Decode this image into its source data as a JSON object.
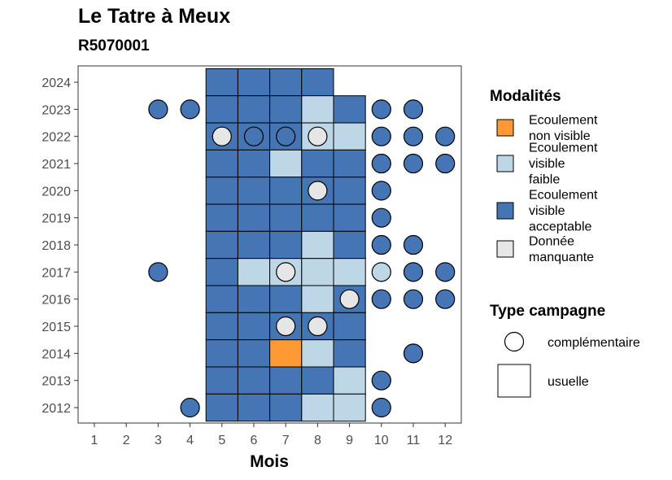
{
  "chart_data": {
    "type": "heatmap",
    "title": "Le Tatre à Meux",
    "subtitle": "R5070001",
    "xlabel": "Mois",
    "ylabel": "",
    "x_ticks": [
      1,
      2,
      3,
      4,
      5,
      6,
      7,
      8,
      9,
      10,
      11,
      12
    ],
    "y_ticks": [
      2012,
      2013,
      2014,
      2015,
      2016,
      2017,
      2018,
      2019,
      2020,
      2021,
      2022,
      2023,
      2024
    ],
    "legend_modalites": {
      "title": "Modalités",
      "items": [
        {
          "key": "nv",
          "label": "Ecoulement non visible",
          "color": "#FF9933"
        },
        {
          "key": "vf",
          "label": "Ecoulement visible faible",
          "color": "#BDD7E7"
        },
        {
          "key": "va",
          "label": "Ecoulement visible acceptable",
          "color": "#4575B4"
        },
        {
          "key": "dm",
          "label": "Donnée manquante",
          "color": "#E6E6E6"
        }
      ]
    },
    "legend_campagne": {
      "title": "Type campagne",
      "items": [
        {
          "shape": "circle",
          "label": "complémentaire"
        },
        {
          "shape": "square",
          "label": "usuelle"
        }
      ]
    },
    "points": [
      {
        "year": 2024,
        "month": 5,
        "mod": "va",
        "type": "usuelle"
      },
      {
        "year": 2024,
        "month": 6,
        "mod": "va",
        "type": "usuelle"
      },
      {
        "year": 2024,
        "month": 7,
        "mod": "va",
        "type": "usuelle"
      },
      {
        "year": 2024,
        "month": 8,
        "mod": "va",
        "type": "usuelle"
      },
      {
        "year": 2023,
        "month": 3,
        "mod": "va",
        "type": "complementaire"
      },
      {
        "year": 2023,
        "month": 4,
        "mod": "va",
        "type": "complementaire"
      },
      {
        "year": 2023,
        "month": 5,
        "mod": "va",
        "type": "usuelle"
      },
      {
        "year": 2023,
        "month": 6,
        "mod": "va",
        "type": "usuelle"
      },
      {
        "year": 2023,
        "month": 7,
        "mod": "va",
        "type": "usuelle"
      },
      {
        "year": 2023,
        "month": 8,
        "mod": "vf",
        "type": "usuelle"
      },
      {
        "year": 2023,
        "month": 9,
        "mod": "va",
        "type": "usuelle"
      },
      {
        "year": 2023,
        "month": 10,
        "mod": "va",
        "type": "complementaire"
      },
      {
        "year": 2023,
        "month": 11,
        "mod": "va",
        "type": "complementaire"
      },
      {
        "year": 2022,
        "month": 5,
        "mod": "va",
        "type": "usuelle"
      },
      {
        "year": 2022,
        "month": 6,
        "mod": "va",
        "type": "usuelle"
      },
      {
        "year": 2022,
        "month": 7,
        "mod": "va",
        "type": "usuelle"
      },
      {
        "year": 2022,
        "month": 8,
        "mod": "vf",
        "type": "usuelle"
      },
      {
        "year": 2022,
        "month": 9,
        "mod": "vf",
        "type": "usuelle"
      },
      {
        "year": 2022,
        "month": 5,
        "mod": "dm",
        "type": "complementaire"
      },
      {
        "year": 2022,
        "month": 6,
        "mod": "va",
        "type": "complementaire"
      },
      {
        "year": 2022,
        "month": 7,
        "mod": "va",
        "type": "complementaire"
      },
      {
        "year": 2022,
        "month": 8,
        "mod": "dm",
        "type": "complementaire"
      },
      {
        "year": 2022,
        "month": 10,
        "mod": "va",
        "type": "complementaire"
      },
      {
        "year": 2022,
        "month": 11,
        "mod": "va",
        "type": "complementaire"
      },
      {
        "year": 2022,
        "month": 12,
        "mod": "va",
        "type": "complementaire"
      },
      {
        "year": 2021,
        "month": 5,
        "mod": "va",
        "type": "usuelle"
      },
      {
        "year": 2021,
        "month": 6,
        "mod": "va",
        "type": "usuelle"
      },
      {
        "year": 2021,
        "month": 7,
        "mod": "vf",
        "type": "usuelle"
      },
      {
        "year": 2021,
        "month": 8,
        "mod": "va",
        "type": "usuelle"
      },
      {
        "year": 2021,
        "month": 9,
        "mod": "va",
        "type": "usuelle"
      },
      {
        "year": 2021,
        "month": 10,
        "mod": "va",
        "type": "complementaire"
      },
      {
        "year": 2021,
        "month": 11,
        "mod": "va",
        "type": "complementaire"
      },
      {
        "year": 2021,
        "month": 12,
        "mod": "va",
        "type": "complementaire"
      },
      {
        "year": 2020,
        "month": 5,
        "mod": "va",
        "type": "usuelle"
      },
      {
        "year": 2020,
        "month": 6,
        "mod": "va",
        "type": "usuelle"
      },
      {
        "year": 2020,
        "month": 7,
        "mod": "va",
        "type": "usuelle"
      },
      {
        "year": 2020,
        "month": 8,
        "mod": "va",
        "type": "usuelle"
      },
      {
        "year": 2020,
        "month": 9,
        "mod": "va",
        "type": "usuelle"
      },
      {
        "year": 2020,
        "month": 8,
        "mod": "dm",
        "type": "complementaire"
      },
      {
        "year": 2020,
        "month": 10,
        "mod": "va",
        "type": "complementaire"
      },
      {
        "year": 2019,
        "month": 5,
        "mod": "va",
        "type": "usuelle"
      },
      {
        "year": 2019,
        "month": 6,
        "mod": "va",
        "type": "usuelle"
      },
      {
        "year": 2019,
        "month": 7,
        "mod": "va",
        "type": "usuelle"
      },
      {
        "year": 2019,
        "month": 8,
        "mod": "va",
        "type": "usuelle"
      },
      {
        "year": 2019,
        "month": 9,
        "mod": "va",
        "type": "usuelle"
      },
      {
        "year": 2019,
        "month": 10,
        "mod": "va",
        "type": "complementaire"
      },
      {
        "year": 2018,
        "month": 5,
        "mod": "va",
        "type": "usuelle"
      },
      {
        "year": 2018,
        "month": 6,
        "mod": "va",
        "type": "usuelle"
      },
      {
        "year": 2018,
        "month": 7,
        "mod": "va",
        "type": "usuelle"
      },
      {
        "year": 2018,
        "month": 8,
        "mod": "vf",
        "type": "usuelle"
      },
      {
        "year": 2018,
        "month": 9,
        "mod": "va",
        "type": "usuelle"
      },
      {
        "year": 2018,
        "month": 10,
        "mod": "va",
        "type": "complementaire"
      },
      {
        "year": 2018,
        "month": 11,
        "mod": "va",
        "type": "complementaire"
      },
      {
        "year": 2017,
        "month": 3,
        "mod": "va",
        "type": "complementaire"
      },
      {
        "year": 2017,
        "month": 5,
        "mod": "va",
        "type": "usuelle"
      },
      {
        "year": 2017,
        "month": 6,
        "mod": "vf",
        "type": "usuelle"
      },
      {
        "year": 2017,
        "month": 7,
        "mod": "vf",
        "type": "usuelle"
      },
      {
        "year": 2017,
        "month": 8,
        "mod": "vf",
        "type": "usuelle"
      },
      {
        "year": 2017,
        "month": 9,
        "mod": "vf",
        "type": "usuelle"
      },
      {
        "year": 2017,
        "month": 7,
        "mod": "dm",
        "type": "complementaire"
      },
      {
        "year": 2017,
        "month": 10,
        "mod": "vf",
        "type": "complementaire"
      },
      {
        "year": 2017,
        "month": 11,
        "mod": "va",
        "type": "complementaire"
      },
      {
        "year": 2017,
        "month": 12,
        "mod": "va",
        "type": "complementaire"
      },
      {
        "year": 2016,
        "month": 5,
        "mod": "va",
        "type": "usuelle"
      },
      {
        "year": 2016,
        "month": 6,
        "mod": "va",
        "type": "usuelle"
      },
      {
        "year": 2016,
        "month": 7,
        "mod": "va",
        "type": "usuelle"
      },
      {
        "year": 2016,
        "month": 8,
        "mod": "vf",
        "type": "usuelle"
      },
      {
        "year": 2016,
        "month": 9,
        "mod": "va",
        "type": "usuelle"
      },
      {
        "year": 2016,
        "month": 9,
        "mod": "dm",
        "type": "complementaire"
      },
      {
        "year": 2016,
        "month": 10,
        "mod": "va",
        "type": "complementaire"
      },
      {
        "year": 2016,
        "month": 11,
        "mod": "va",
        "type": "complementaire"
      },
      {
        "year": 2016,
        "month": 12,
        "mod": "va",
        "type": "complementaire"
      },
      {
        "year": 2015,
        "month": 5,
        "mod": "va",
        "type": "usuelle"
      },
      {
        "year": 2015,
        "month": 6,
        "mod": "va",
        "type": "usuelle"
      },
      {
        "year": 2015,
        "month": 7,
        "mod": "va",
        "type": "usuelle"
      },
      {
        "year": 2015,
        "month": 8,
        "mod": "va",
        "type": "usuelle"
      },
      {
        "year": 2015,
        "month": 9,
        "mod": "va",
        "type": "usuelle"
      },
      {
        "year": 2015,
        "month": 7,
        "mod": "dm",
        "type": "complementaire"
      },
      {
        "year": 2015,
        "month": 8,
        "mod": "dm",
        "type": "complementaire"
      },
      {
        "year": 2014,
        "month": 5,
        "mod": "va",
        "type": "usuelle"
      },
      {
        "year": 2014,
        "month": 6,
        "mod": "va",
        "type": "usuelle"
      },
      {
        "year": 2014,
        "month": 7,
        "mod": "nv",
        "type": "usuelle"
      },
      {
        "year": 2014,
        "month": 8,
        "mod": "vf",
        "type": "usuelle"
      },
      {
        "year": 2014,
        "month": 9,
        "mod": "va",
        "type": "usuelle"
      },
      {
        "year": 2014,
        "month": 11,
        "mod": "va",
        "type": "complementaire"
      },
      {
        "year": 2013,
        "month": 5,
        "mod": "va",
        "type": "usuelle"
      },
      {
        "year": 2013,
        "month": 6,
        "mod": "va",
        "type": "usuelle"
      },
      {
        "year": 2013,
        "month": 7,
        "mod": "va",
        "type": "usuelle"
      },
      {
        "year": 2013,
        "month": 8,
        "mod": "va",
        "type": "usuelle"
      },
      {
        "year": 2013,
        "month": 9,
        "mod": "vf",
        "type": "usuelle"
      },
      {
        "year": 2013,
        "month": 10,
        "mod": "va",
        "type": "complementaire"
      },
      {
        "year": 2012,
        "month": 4,
        "mod": "va",
        "type": "complementaire"
      },
      {
        "year": 2012,
        "month": 5,
        "mod": "va",
        "type": "usuelle"
      },
      {
        "year": 2012,
        "month": 6,
        "mod": "va",
        "type": "usuelle"
      },
      {
        "year": 2012,
        "month": 7,
        "mod": "va",
        "type": "usuelle"
      },
      {
        "year": 2012,
        "month": 8,
        "mod": "vf",
        "type": "usuelle"
      },
      {
        "year": 2012,
        "month": 9,
        "mod": "vf",
        "type": "usuelle"
      },
      {
        "year": 2012,
        "month": 10,
        "mod": "va",
        "type": "complementaire"
      }
    ]
  }
}
